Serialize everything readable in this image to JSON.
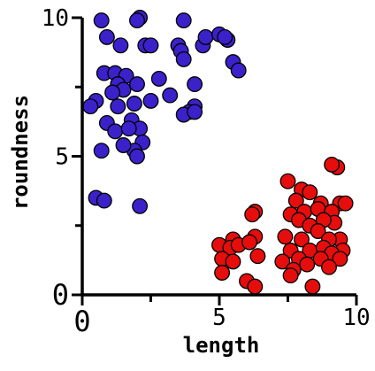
{
  "chart_data": {
    "type": "scatter",
    "title": "",
    "xlabel": "length",
    "ylabel": "roundness",
    "xlim": [
      0,
      10
    ],
    "ylim": [
      0,
      10
    ],
    "xticks": [
      0,
      5,
      10
    ],
    "yticks": [
      0,
      5,
      10
    ],
    "xtick_labels": [
      "0",
      "5",
      "10"
    ],
    "ytick_labels": [
      "0",
      "5",
      "10"
    ],
    "grid": false,
    "legend": "none",
    "series": [
      {
        "color": "#3b21c9",
        "x": [
          0.7,
          2.1,
          2.0,
          3.7,
          0.9,
          1.4,
          2.3,
          2.5,
          3.5,
          4.4,
          4.5,
          5.0,
          5.3,
          5.2,
          3.6,
          3.7,
          5.5,
          5.7,
          0.8,
          1.2,
          1.6,
          2.8,
          1.3,
          1.5,
          2.0,
          4.1,
          1.1,
          2.5,
          3.2,
          0.5,
          1.9,
          1.3,
          4.1,
          3.9,
          1.8,
          2.1,
          0.9,
          1.2,
          3.7,
          4.1,
          0.3,
          1.7,
          2.2,
          0.7,
          1.9,
          1.5,
          2.0,
          0.5,
          0.8,
          2.1
        ],
        "y": [
          9.9,
          10.0,
          9.9,
          9.9,
          9.3,
          9.0,
          9.0,
          9.0,
          9.0,
          9.0,
          9.3,
          9.4,
          9.2,
          9.3,
          8.8,
          8.5,
          8.4,
          8.1,
          8.0,
          8.0,
          7.9,
          7.8,
          7.6,
          7.4,
          7.6,
          7.6,
          7.3,
          7.0,
          7.2,
          7.0,
          6.9,
          6.8,
          6.8,
          6.6,
          6.3,
          6.0,
          6.2,
          5.9,
          6.5,
          6.6,
          6.8,
          6.0,
          5.5,
          5.2,
          5.2,
          5.4,
          5.0,
          3.5,
          3.4,
          3.2
        ]
      },
      {
        "color": "#e60d0d",
        "x": [
          9.3,
          9.1,
          7.5,
          8.0,
          8.3,
          7.8,
          8.7,
          9.4,
          6.3,
          6.2,
          7.6,
          8.1,
          8.6,
          9.1,
          9.6,
          9.2,
          7.9,
          8.3,
          8.8,
          5.5,
          6.3,
          7.4,
          8.0,
          8.6,
          9.4,
          9.0,
          5.0,
          5.4,
          5.7,
          6.1,
          7.6,
          8.3,
          8.8,
          9.5,
          9.1,
          5.1,
          5.5,
          6.4,
          7.3,
          7.9,
          8.7,
          9.4,
          8.2,
          7.7,
          5.1,
          6.0,
          6.3,
          7.6,
          8.4,
          9.0
        ],
        "y": [
          4.6,
          4.7,
          4.1,
          3.8,
          3.7,
          3.4,
          3.3,
          3.3,
          3.0,
          2.9,
          2.9,
          3.0,
          3.1,
          3.0,
          3.3,
          2.6,
          2.7,
          2.5,
          2.7,
          2.0,
          2.1,
          2.1,
          2.0,
          2.3,
          2.0,
          2.0,
          1.8,
          1.7,
          1.8,
          1.9,
          1.6,
          1.6,
          1.7,
          1.6,
          1.5,
          1.3,
          1.2,
          1.4,
          1.2,
          1.3,
          1.3,
          1.3,
          1.1,
          0.9,
          0.8,
          0.5,
          0.3,
          0.7,
          0.3,
          1.0
        ]
      }
    ]
  }
}
